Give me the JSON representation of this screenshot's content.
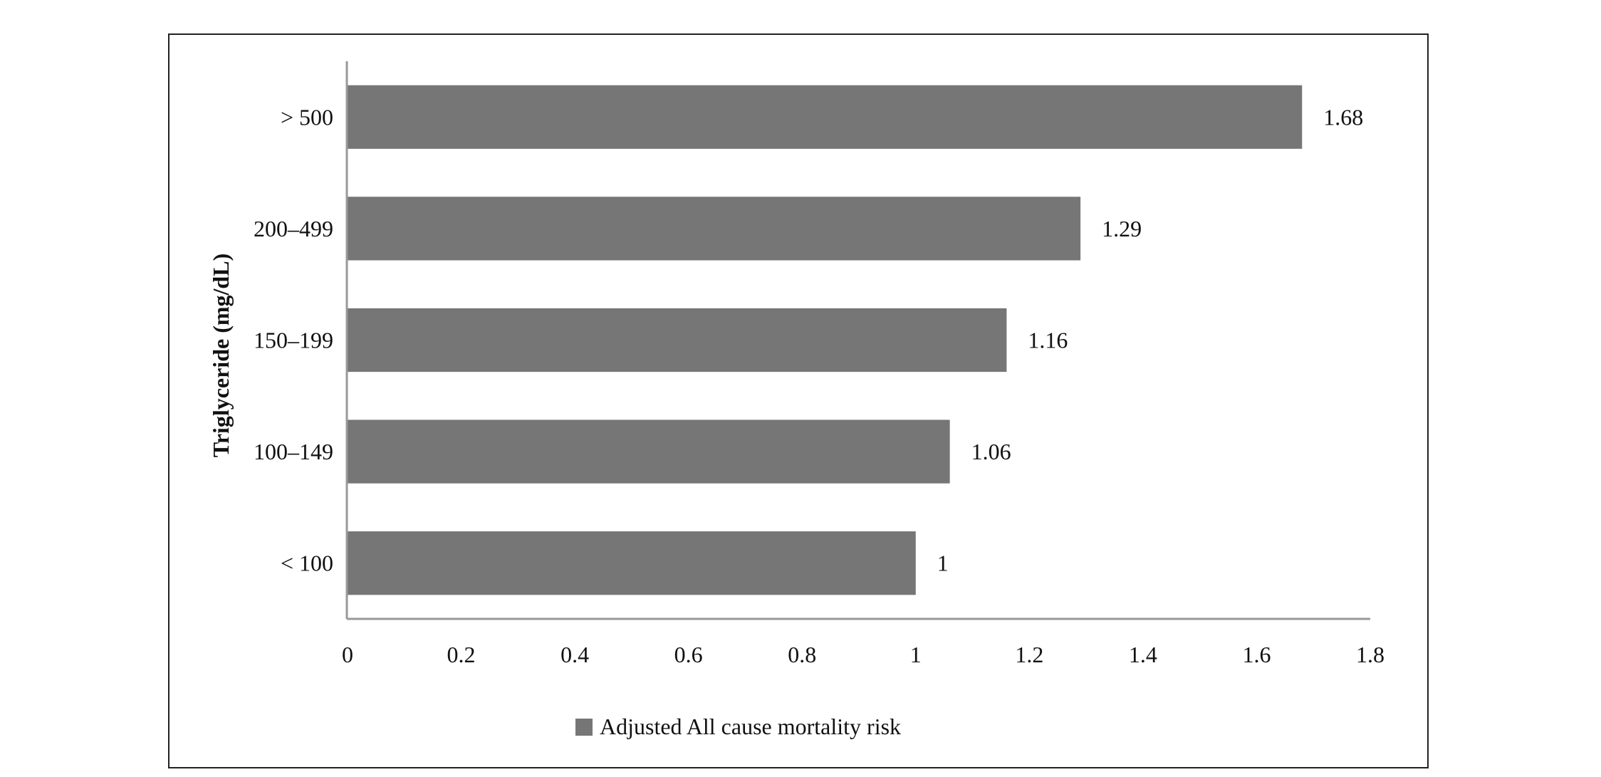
{
  "chart_data": {
    "type": "bar",
    "orientation": "horizontal",
    "categories": [
      "< 100",
      "100–149",
      "150–199",
      "200–499",
      "> 500"
    ],
    "series": [
      {
        "name": "Adjusted All cause mortality risk",
        "values": [
          1,
          1.06,
          1.16,
          1.29,
          1.68
        ],
        "color": "#767676"
      }
    ],
    "data_labels": [
      "1",
      "1.06",
      "1.16",
      "1.29",
      "1.68"
    ],
    "xlim": [
      0,
      1.8
    ],
    "xticks": [
      "0",
      "0.2",
      "0.4",
      "0.6",
      "0.8",
      "1",
      "1.2",
      "1.4",
      "1.6",
      "1.8"
    ],
    "xlabel": "",
    "ylabel": "Triglyceride (mg/dL)",
    "grid": false,
    "legend_position": "bottom"
  }
}
